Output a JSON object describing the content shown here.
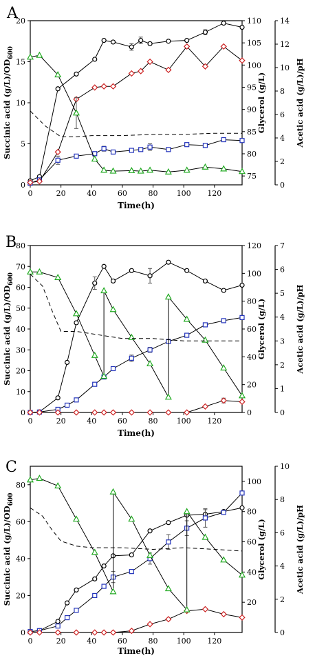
{
  "chart_data": [
    {
      "type": "line",
      "panel_label": "A",
      "xlabel": "Time(h)",
      "ylabel_left": "Succinic acid (g/L)/OD",
      "ylabel_left_sub": "600",
      "ylabel_right1": "Glycerol (g/L)",
      "ylabel_right2": "Acetic acid (g/L)/pH",
      "xlim": [
        0,
        138
      ],
      "xticks": [
        0,
        20,
        40,
        60,
        80,
        100,
        120
      ],
      "left_axis": {
        "ylim": [
          0,
          20
        ],
        "ticks": [
          0,
          5,
          10,
          15,
          20
        ]
      },
      "right1_axis": {
        "ylim": [
          73,
          110
        ],
        "ticks": [
          75,
          80,
          85,
          90,
          95,
          100,
          105,
          110
        ]
      },
      "right2_axis": {
        "ylim": [
          0,
          14
        ],
        "ticks": [
          0,
          2,
          4,
          6,
          8,
          10,
          12,
          14
        ]
      },
      "series": [
        {
          "marker": "circle",
          "color": "#000000",
          "axis": "left",
          "x": [
            0,
            6,
            18,
            30,
            42,
            48,
            54,
            66,
            72,
            78,
            90,
            102,
            114,
            126,
            138
          ],
          "y": [
            0.5,
            1.0,
            11.7,
            13.5,
            15.3,
            17.6,
            17.4,
            16.8,
            17.6,
            17.2,
            17.5,
            17.6,
            18.6,
            19.7,
            19.2
          ],
          "err": [
            0,
            0,
            0,
            0,
            0,
            0,
            0,
            0.4,
            0.4,
            0,
            0,
            0,
            0.3,
            0,
            0
          ]
        },
        {
          "marker": "square",
          "color": "#2233bb",
          "axis": "left",
          "x": [
            0,
            6,
            18,
            30,
            42,
            48,
            54,
            66,
            72,
            78,
            90,
            102,
            114,
            126,
            138
          ],
          "y": [
            0.2,
            0.6,
            3.0,
            3.5,
            3.8,
            4.4,
            4.0,
            4.2,
            4.3,
            4.6,
            4.3,
            4.9,
            4.8,
            5.5,
            5.4
          ],
          "err": [
            0,
            0,
            0.5,
            0,
            0,
            0.3,
            0,
            0,
            0,
            0.4,
            0,
            0,
            0,
            0,
            0
          ]
        },
        {
          "marker": "diamond",
          "color": "#cc2222",
          "axis": "right2",
          "x": [
            0,
            6,
            18,
            30,
            42,
            48,
            54,
            66,
            72,
            78,
            90,
            102,
            114,
            126,
            138
          ],
          "y": [
            0.2,
            0.3,
            2.8,
            7.3,
            8.3,
            8.4,
            8.4,
            9.5,
            9.7,
            10.5,
            9.8,
            11.8,
            10.1,
            11.8,
            10.6
          ],
          "err": [
            0,
            0,
            0,
            0,
            0,
            0,
            0,
            0,
            0,
            0,
            0,
            0,
            0,
            0,
            0
          ]
        },
        {
          "marker": "triangle",
          "color": "#22aa22",
          "axis": "right1",
          "x": [
            0,
            6,
            18,
            30,
            42,
            48,
            54,
            66,
            72,
            78,
            90,
            102,
            114,
            126,
            138
          ],
          "y": [
            101.8,
            102.2,
            97.8,
            89.2,
            78.8,
            76.3,
            76.1,
            76.2,
            76.1,
            76.3,
            75.9,
            76.3,
            77.0,
            76.6,
            76.0
          ],
          "err": [
            0,
            0,
            0,
            3.5,
            0,
            0,
            0,
            0,
            0,
            0,
            0,
            0,
            0,
            0,
            0
          ]
        },
        {
          "marker": "none",
          "dashed": true,
          "color": "#000000",
          "axis": "right2",
          "x": [
            0,
            10,
            20,
            30,
            40,
            60,
            80,
            100,
            120,
            138
          ],
          "y": [
            6.3,
            5.0,
            4.1,
            4.1,
            4.2,
            4.2,
            4.3,
            4.3,
            4.4,
            4.4
          ]
        }
      ]
    },
    {
      "type": "line",
      "panel_label": "B",
      "xlabel": "Time(h)",
      "ylabel_left": "Succinic acid (g/L)/OD",
      "ylabel_left_sub": "600",
      "ylabel_right1": "Glycerol (g/L)",
      "ylabel_right2": "Acetic acid (g/L)/pH",
      "xlim": [
        0,
        138
      ],
      "xticks": [
        0,
        20,
        40,
        60,
        80,
        100,
        120
      ],
      "left_axis": {
        "ylim": [
          0,
          80
        ],
        "ticks": [
          0,
          10,
          20,
          30,
          40,
          50,
          60,
          70,
          80
        ]
      },
      "right1_axis": {
        "ylim": [
          0,
          120
        ],
        "ticks": [
          0,
          20,
          40,
          60,
          80,
          100,
          120
        ]
      },
      "right2_axis": {
        "ylim": [
          0,
          7
        ],
        "ticks": [
          0,
          1,
          2,
          3,
          4,
          5,
          6,
          7
        ]
      },
      "series": [
        {
          "marker": "circle",
          "color": "#000000",
          "axis": "left",
          "x": [
            0,
            6,
            18,
            24,
            30,
            42,
            48,
            54,
            66,
            78,
            90,
            102,
            114,
            126,
            138
          ],
          "y": [
            0,
            0.3,
            7.0,
            24.0,
            43.0,
            62.0,
            70.0,
            63.0,
            68.0,
            65.5,
            72.0,
            68.0,
            63.0,
            58.5,
            61.0
          ],
          "err": [
            0,
            0,
            0,
            0,
            0,
            3.0,
            0,
            0,
            0,
            3.5,
            0,
            0,
            0,
            0,
            0
          ]
        },
        {
          "marker": "square",
          "color": "#2233bb",
          "axis": "left",
          "x": [
            0,
            6,
            18,
            24,
            30,
            42,
            48,
            54,
            66,
            78,
            90,
            102,
            114,
            126,
            138
          ],
          "y": [
            0,
            0.2,
            1.5,
            3.5,
            6.0,
            13.5,
            17.0,
            21.0,
            26.0,
            30.0,
            34.0,
            37.0,
            42.0,
            44.0,
            45.5
          ],
          "err": [
            0,
            0,
            0,
            0,
            0,
            0,
            0,
            0,
            1.5,
            1.2,
            0,
            0,
            0,
            0,
            0
          ]
        },
        {
          "marker": "diamond",
          "color": "#cc2222",
          "axis": "right2",
          "x": [
            0,
            6,
            18,
            30,
            42,
            48,
            54,
            66,
            78,
            90,
            102,
            114,
            126,
            138
          ],
          "y": [
            0,
            0,
            0,
            0,
            0,
            0,
            0,
            0,
            0,
            0,
            0,
            0.25,
            0.5,
            0.45
          ],
          "err": [
            0,
            0,
            0,
            0,
            0,
            0,
            0,
            0,
            0,
            0,
            0,
            0,
            0.1,
            0
          ]
        },
        {
          "marker": "triangle",
          "color": "#22aa22",
          "axis": "right1",
          "x": [
            0,
            6,
            18,
            30,
            42,
            48,
            48,
            54,
            66,
            78,
            90,
            90,
            102,
            114,
            126,
            138
          ],
          "y": [
            101.0,
            101.0,
            97.0,
            71.0,
            41.0,
            26.0,
            87.5,
            74.0,
            54.0,
            35.0,
            11.0,
            83.0,
            67.0,
            52.0,
            32.0,
            12.0
          ],
          "err": [
            0,
            0,
            0,
            0,
            0,
            0,
            0,
            0,
            0,
            0,
            0,
            0,
            0,
            0,
            0,
            0
          ]
        },
        {
          "marker": "none",
          "dashed": true,
          "color": "#000000",
          "axis": "right2",
          "x": [
            0,
            8,
            14,
            20,
            30,
            40,
            60,
            80,
            100,
            120,
            138
          ],
          "y": [
            5.8,
            5.3,
            4.3,
            3.4,
            3.4,
            3.3,
            3.1,
            3.1,
            3.0,
            3.0,
            3.0
          ]
        }
      ]
    },
    {
      "type": "line",
      "panel_label": "C",
      "xlabel": "Time(h)",
      "ylabel_left": "Succinic acid (g/L)/OD",
      "ylabel_left_sub": "600",
      "ylabel_right1": "Glycerol (g/L)",
      "ylabel_right2": "Acetic acid (g/L)/pH",
      "xlim": [
        0,
        138
      ],
      "xticks": [
        0,
        20,
        40,
        60,
        80,
        100,
        120
      ],
      "left_axis": {
        "ylim": [
          0,
          90
        ],
        "ticks": [
          0,
          20,
          40,
          60,
          80
        ]
      },
      "right1_axis": {
        "ylim": [
          0,
          110
        ],
        "ticks": [
          20,
          40,
          60,
          80,
          100
        ]
      },
      "right2_axis": {
        "ylim": [
          0,
          10
        ],
        "ticks": [
          0,
          2,
          4,
          6,
          8,
          10
        ]
      },
      "series": [
        {
          "marker": "circle",
          "color": "#000000",
          "axis": "left",
          "x": [
            0,
            6,
            18,
            24,
            30,
            42,
            48,
            54,
            66,
            78,
            90,
            102,
            114,
            126,
            138
          ],
          "y": [
            0.5,
            1.0,
            6.0,
            16.0,
            23.0,
            29.0,
            36.0,
            41.5,
            42.0,
            55.0,
            59.5,
            63.5,
            64.0,
            65.5,
            67.5
          ],
          "err": [
            0,
            0,
            0,
            0,
            0,
            0,
            0,
            0,
            0,
            0,
            0,
            0,
            2.5,
            0,
            0
          ]
        },
        {
          "marker": "square",
          "color": "#2233bb",
          "axis": "left",
          "x": [
            0,
            6,
            18,
            24,
            30,
            42,
            48,
            54,
            66,
            78,
            90,
            102,
            114,
            126,
            138
          ],
          "y": [
            0.5,
            1.0,
            3.5,
            8.0,
            12.0,
            20.0,
            25.0,
            30.0,
            33.0,
            40.0,
            49.0,
            56.5,
            62.0,
            65.0,
            75.5
          ],
          "err": [
            0,
            0,
            0,
            0,
            0,
            0,
            0,
            3.0,
            0,
            3.0,
            4.0,
            4.0,
            5.0,
            0,
            0
          ]
        },
        {
          "marker": "diamond",
          "color": "#cc2222",
          "axis": "right2",
          "x": [
            0,
            6,
            18,
            30,
            42,
            48,
            54,
            66,
            78,
            90,
            102,
            114,
            126,
            138
          ],
          "y": [
            0,
            0,
            0,
            0,
            0,
            0,
            0,
            0.1,
            0.5,
            0.8,
            1.3,
            1.4,
            1.1,
            0.9
          ],
          "err": [
            0,
            0,
            0,
            0,
            0,
            0,
            0,
            0,
            0,
            0,
            0,
            0,
            0,
            0
          ]
        },
        {
          "marker": "triangle",
          "color": "#22aa22",
          "axis": "right1",
          "x": [
            0,
            6,
            18,
            30,
            42,
            54,
            54,
            66,
            78,
            90,
            102,
            102,
            114,
            126,
            138
          ],
          "y": [
            101.0,
            102.0,
            97.0,
            75.0,
            53.0,
            27.0,
            93.0,
            75.0,
            51.0,
            29.0,
            15.0,
            80.0,
            63.0,
            48.0,
            38.0
          ],
          "err": [
            0,
            0,
            0,
            0,
            0,
            0,
            0,
            0,
            0,
            0,
            0,
            0,
            0,
            0,
            0
          ]
        },
        {
          "marker": "none",
          "dashed": true,
          "color": "#000000",
          "axis": "right2",
          "x": [
            0,
            8,
            14,
            20,
            30,
            40,
            60,
            80,
            100,
            120,
            138
          ],
          "y": [
            7.5,
            7.0,
            6.2,
            5.5,
            5.2,
            5.1,
            5.1,
            5.0,
            5.1,
            5.0,
            4.9
          ]
        }
      ]
    }
  ]
}
